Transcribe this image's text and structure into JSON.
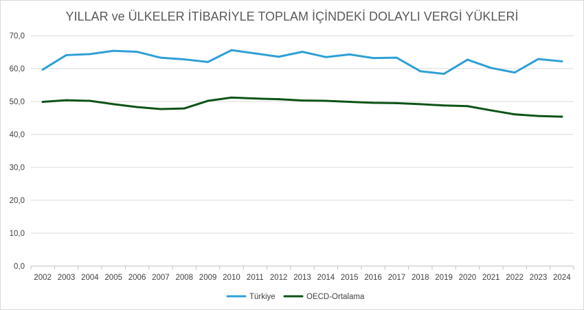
{
  "chart_data": {
    "type": "line",
    "title": "YILLAR ve ÜLKELER İTİBARİYLE TOPLAM İÇİNDEKİ DOLAYLI VERGİ YÜKLERİ",
    "xlabel": "",
    "ylabel": "",
    "ylim": [
      0,
      70
    ],
    "yticks": [
      "0,0",
      "10,0",
      "20,0",
      "30,0",
      "40,0",
      "50,0",
      "60,0",
      "70,0"
    ],
    "categories": [
      "2002",
      "2003",
      "2004",
      "2005",
      "2006",
      "2007",
      "2008",
      "2009",
      "2010",
      "2011",
      "2012",
      "2013",
      "2014",
      "2015",
      "2016",
      "2017",
      "2018",
      "2019",
      "2020",
      "2021",
      "2022",
      "2023",
      "2024"
    ],
    "grid": true,
    "legend_position": "bottom",
    "series": [
      {
        "name": "Türkiye",
        "color": "#2e9fd6",
        "values": [
          59.7,
          64.1,
          64.4,
          65.4,
          65.1,
          63.3,
          62.8,
          62.0,
          65.6,
          64.6,
          63.6,
          65.1,
          63.5,
          64.3,
          63.2,
          63.3,
          59.2,
          58.4,
          62.7,
          60.2,
          58.8,
          62.9,
          62.2
        ]
      },
      {
        "name": "OECD-Ortalama",
        "color": "#0b5316",
        "values": [
          49.9,
          50.4,
          50.2,
          49.2,
          48.3,
          47.7,
          47.9,
          50.2,
          51.2,
          50.9,
          50.7,
          50.3,
          50.2,
          49.9,
          49.6,
          49.5,
          49.2,
          48.8,
          48.6,
          47.3,
          46.1,
          45.6,
          45.4
        ]
      }
    ]
  }
}
